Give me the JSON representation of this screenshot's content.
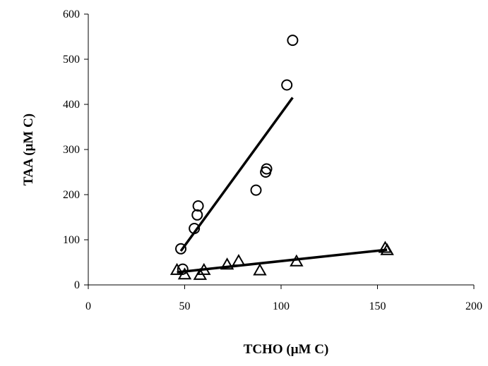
{
  "chart_data": {
    "type": "scatter",
    "title": "",
    "xlabel": "TCHO (μM C)",
    "ylabel": "TAA (μM C)",
    "xlim": [
      0,
      200
    ],
    "ylim": [
      0,
      600
    ],
    "xticks": [
      "0",
      "50",
      "100",
      "150",
      "200"
    ],
    "yticks": [
      "0",
      "100",
      "200",
      "300",
      "400",
      "500",
      "600"
    ],
    "grid": false,
    "legend": "none",
    "series": [
      {
        "marker": "circle",
        "points": [
          {
            "x": 48,
            "y": 80
          },
          {
            "x": 49,
            "y": 35
          },
          {
            "x": 55,
            "y": 125
          },
          {
            "x": 56.5,
            "y": 155
          },
          {
            "x": 57,
            "y": 175
          },
          {
            "x": 87,
            "y": 210
          },
          {
            "x": 92,
            "y": 250
          },
          {
            "x": 92.5,
            "y": 257
          },
          {
            "x": 103,
            "y": 443
          },
          {
            "x": 106,
            "y": 542
          }
        ],
        "trendline": {
          "x1": 48,
          "y1": 75,
          "x2": 106,
          "y2": 415
        }
      },
      {
        "marker": "triangle",
        "points": [
          {
            "x": 46,
            "y": 33
          },
          {
            "x": 50,
            "y": 23
          },
          {
            "x": 58,
            "y": 22
          },
          {
            "x": 60,
            "y": 33
          },
          {
            "x": 72,
            "y": 45
          },
          {
            "x": 78,
            "y": 53
          },
          {
            "x": 89,
            "y": 32
          },
          {
            "x": 108,
            "y": 52
          },
          {
            "x": 154,
            "y": 82
          },
          {
            "x": 155,
            "y": 77
          }
        ],
        "trendline": {
          "x1": 46,
          "y1": 28,
          "x2": 155,
          "y2": 78
        }
      }
    ]
  }
}
